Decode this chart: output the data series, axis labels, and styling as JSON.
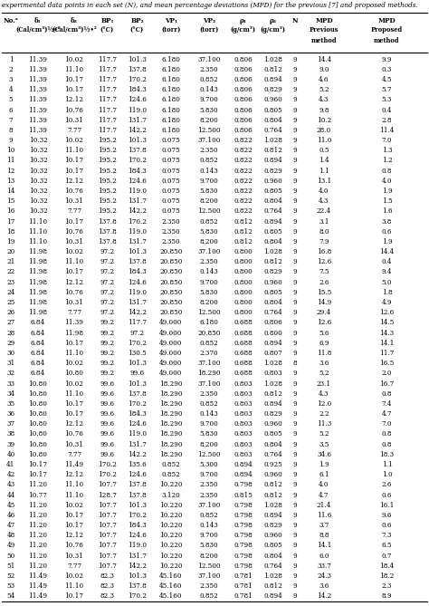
{
  "title_text": "experimental data points in each set (N), and mean percentage deviations (MPD) for the previous [7] and proposed methods.",
  "col_header_line1": [
    "No.ᵃ",
    "δ₁",
    "δ₂",
    "BP₁",
    "BP₂",
    "VP₁",
    "VP₂",
    "ρ₁",
    "ρ₂",
    "N",
    "MPD",
    "MPD"
  ],
  "col_header_line2": [
    "",
    "(Cal/cm³)½•²",
    "(Cal/cm³)½•²",
    "(°C)",
    "(°C)",
    "(torr)",
    "(torr)",
    "(g/cm³)",
    "(g/cm³)",
    "",
    "Previous",
    "Proposed"
  ],
  "col_header_line3": [
    "",
    "",
    "",
    "",
    "",
    "",
    "",
    "",
    "",
    "",
    "method",
    "method"
  ],
  "rows": [
    [
      1,
      11.39,
      10.02,
      117.7,
      101.3,
      6.18,
      37.1,
      0.806,
      1.028,
      9,
      14.4,
      9.9
    ],
    [
      2,
      11.39,
      11.1,
      117.7,
      137.8,
      6.18,
      2.35,
      0.806,
      0.812,
      9,
      9.0,
      0.3
    ],
    [
      3,
      11.39,
      10.17,
      117.7,
      170.2,
      6.18,
      0.852,
      0.806,
      0.894,
      9,
      4.6,
      4.5
    ],
    [
      4,
      11.39,
      10.17,
      117.7,
      184.3,
      6.18,
      0.143,
      0.806,
      0.829,
      9,
      5.2,
      5.7
    ],
    [
      5,
      11.39,
      12.12,
      117.7,
      124.6,
      6.18,
      9.7,
      0.806,
      0.96,
      9,
      4.3,
      5.3
    ],
    [
      6,
      11.39,
      10.76,
      117.7,
      119.0,
      6.18,
      5.83,
      0.806,
      0.805,
      9,
      9.8,
      0.4
    ],
    [
      7,
      11.39,
      10.31,
      117.7,
      131.7,
      6.18,
      8.2,
      0.806,
      0.804,
      9,
      10.2,
      2.8
    ],
    [
      8,
      11.39,
      7.77,
      117.7,
      142.2,
      6.18,
      12.5,
      0.806,
      0.764,
      9,
      28.0,
      11.4
    ],
    [
      9,
      10.32,
      10.02,
      195.2,
      101.3,
      0.075,
      37.1,
      0.822,
      1.028,
      9,
      11.0,
      7.0
    ],
    [
      10,
      10.32,
      11.1,
      195.2,
      137.8,
      0.075,
      2.35,
      0.822,
      0.812,
      9,
      0.5,
      1.3
    ],
    [
      11,
      10.32,
      10.17,
      195.2,
      170.2,
      0.075,
      0.852,
      0.822,
      0.894,
      9,
      1.4,
      1.2
    ],
    [
      12,
      10.32,
      10.17,
      195.2,
      184.3,
      0.075,
      0.143,
      0.822,
      0.829,
      9,
      1.1,
      0.8
    ],
    [
      13,
      10.32,
      12.12,
      195.2,
      124.6,
      0.075,
      9.7,
      0.822,
      0.96,
      9,
      13.1,
      4.0
    ],
    [
      14,
      10.32,
      10.76,
      195.2,
      119.0,
      0.075,
      5.83,
      0.822,
      0.805,
      9,
      4.0,
      1.9
    ],
    [
      15,
      10.32,
      10.31,
      195.2,
      131.7,
      0.075,
      8.2,
      0.822,
      0.804,
      9,
      4.3,
      1.5
    ],
    [
      16,
      10.32,
      7.77,
      195.2,
      142.2,
      0.075,
      12.5,
      0.822,
      0.764,
      9,
      22.4,
      1.6
    ],
    [
      17,
      11.1,
      10.17,
      137.8,
      170.2,
      2.35,
      0.852,
      0.812,
      0.894,
      9,
      3.1,
      3.8
    ],
    [
      18,
      11.1,
      10.76,
      137.8,
      119.0,
      2.35,
      5.83,
      0.812,
      0.805,
      9,
      8.0,
      0.6
    ],
    [
      19,
      11.1,
      10.31,
      137.8,
      131.7,
      2.35,
      8.2,
      0.812,
      0.804,
      9,
      7.9,
      1.9
    ],
    [
      20,
      11.98,
      10.02,
      97.2,
      101.3,
      20.85,
      37.1,
      0.8,
      1.028,
      9,
      16.8,
      14.4
    ],
    [
      21,
      11.98,
      11.1,
      97.2,
      137.8,
      20.85,
      2.35,
      0.8,
      0.812,
      9,
      12.6,
      0.4
    ],
    [
      22,
      11.98,
      10.17,
      97.2,
      184.3,
      20.85,
      0.143,
      0.8,
      0.829,
      9,
      7.5,
      9.4
    ],
    [
      23,
      11.98,
      12.12,
      97.2,
      124.6,
      20.85,
      9.7,
      0.8,
      0.96,
      9,
      2.6,
      5.0
    ],
    [
      24,
      11.98,
      10.76,
      97.2,
      119.0,
      20.85,
      5.83,
      0.8,
      0.805,
      9,
      15.5,
      1.8
    ],
    [
      25,
      11.98,
      10.31,
      97.2,
      131.7,
      20.85,
      8.2,
      0.8,
      0.804,
      9,
      14.9,
      4.9
    ],
    [
      26,
      11.98,
      7.77,
      97.2,
      142.2,
      20.85,
      12.5,
      0.8,
      0.764,
      9,
      29.4,
      12.6
    ],
    [
      27,
      6.84,
      11.39,
      99.2,
      117.7,
      49.0,
      6.18,
      0.688,
      0.806,
      9,
      12.6,
      14.5
    ],
    [
      28,
      6.84,
      11.98,
      99.2,
      97.2,
      49.0,
      20.85,
      0.688,
      0.8,
      9,
      5.6,
      14.3
    ],
    [
      29,
      6.84,
      10.17,
      99.2,
      170.2,
      49.0,
      0.852,
      0.688,
      0.894,
      9,
      6.9,
      14.1
    ],
    [
      30,
      6.84,
      11.1,
      99.2,
      130.5,
      49.0,
      2.37,
      0.688,
      0.807,
      9,
      11.8,
      11.7
    ],
    [
      31,
      6.84,
      10.02,
      99.2,
      101.3,
      49.0,
      37.1,
      0.688,
      1.028,
      8,
      3.6,
      16.5
    ],
    [
      32,
      6.84,
      10.8,
      99.2,
      99.6,
      49.0,
      18.29,
      0.688,
      0.803,
      9,
      5.2,
      2.0
    ],
    [
      33,
      10.8,
      10.02,
      99.6,
      101.3,
      18.29,
      37.1,
      0.803,
      1.028,
      9,
      23.1,
      16.7
    ],
    [
      34,
      10.8,
      11.1,
      99.6,
      137.8,
      18.29,
      2.35,
      0.803,
      0.812,
      9,
      4.3,
      0.8
    ],
    [
      35,
      10.8,
      10.17,
      99.6,
      170.2,
      18.29,
      0.852,
      0.803,
      0.894,
      9,
      12.0,
      7.4
    ],
    [
      36,
      10.8,
      10.17,
      99.6,
      184.3,
      18.29,
      0.143,
      0.803,
      0.829,
      9,
      2.2,
      4.7
    ],
    [
      37,
      10.8,
      12.12,
      99.6,
      124.6,
      18.29,
      9.7,
      0.803,
      0.96,
      9,
      11.3,
      7.0
    ],
    [
      38,
      10.8,
      10.76,
      99.6,
      119.0,
      18.29,
      5.83,
      0.803,
      0.805,
      9,
      5.2,
      0.8
    ],
    [
      39,
      10.8,
      10.31,
      99.6,
      131.7,
      18.29,
      8.2,
      0.803,
      0.804,
      9,
      3.5,
      0.8
    ],
    [
      40,
      10.8,
      7.77,
      99.6,
      142.2,
      18.29,
      12.5,
      0.803,
      0.764,
      9,
      34.6,
      18.3
    ],
    [
      41,
      10.17,
      11.49,
      170.2,
      135.6,
      0.852,
      5.3,
      0.894,
      0.925,
      9,
      1.9,
      1.1
    ],
    [
      42,
      10.17,
      12.12,
      170.2,
      124.6,
      0.852,
      9.7,
      0.894,
      0.96,
      9,
      6.1,
      1.0
    ],
    [
      43,
      11.2,
      11.1,
      107.7,
      137.8,
      10.22,
      2.35,
      0.798,
      0.812,
      9,
      4.0,
      2.6
    ],
    [
      44,
      10.77,
      11.1,
      128.7,
      137.8,
      3.12,
      2.35,
      0.815,
      0.812,
      9,
      4.7,
      0.6
    ],
    [
      45,
      11.2,
      10.02,
      107.7,
      101.3,
      10.22,
      37.1,
      0.798,
      1.028,
      9,
      21.4,
      16.1
    ],
    [
      46,
      11.2,
      10.17,
      107.7,
      170.2,
      10.22,
      0.852,
      0.798,
      0.894,
      9,
      11.6,
      9.6
    ],
    [
      47,
      11.2,
      10.17,
      107.7,
      184.3,
      10.22,
      0.143,
      0.798,
      0.829,
      9,
      3.7,
      0.6
    ],
    [
      48,
      11.2,
      12.12,
      107.7,
      124.6,
      10.22,
      9.7,
      0.798,
      0.96,
      9,
      8.8,
      7.3
    ],
    [
      49,
      11.2,
      10.76,
      107.7,
      119.0,
      10.22,
      5.83,
      0.798,
      0.805,
      9,
      14.1,
      6.5
    ],
    [
      50,
      11.2,
      10.31,
      107.7,
      131.7,
      10.22,
      8.2,
      0.798,
      0.804,
      9,
      6.0,
      0.7
    ],
    [
      51,
      11.2,
      7.77,
      107.7,
      142.2,
      10.22,
      12.5,
      0.798,
      0.764,
      9,
      33.7,
      18.4
    ],
    [
      52,
      11.49,
      10.02,
      82.3,
      101.3,
      45.16,
      37.1,
      0.781,
      1.028,
      9,
      24.3,
      18.2
    ],
    [
      53,
      11.49,
      11.1,
      82.3,
      137.8,
      45.16,
      2.35,
      0.781,
      0.812,
      9,
      3.6,
      2.3
    ],
    [
      54,
      11.49,
      10.17,
      82.3,
      170.2,
      45.16,
      0.852,
      0.781,
      0.894,
      9,
      14.2,
      8.9
    ]
  ],
  "font_size": 5.2,
  "header_font_size": 5.2,
  "title_font_size": 5.2,
  "bg_color": "white",
  "text_color": "black"
}
